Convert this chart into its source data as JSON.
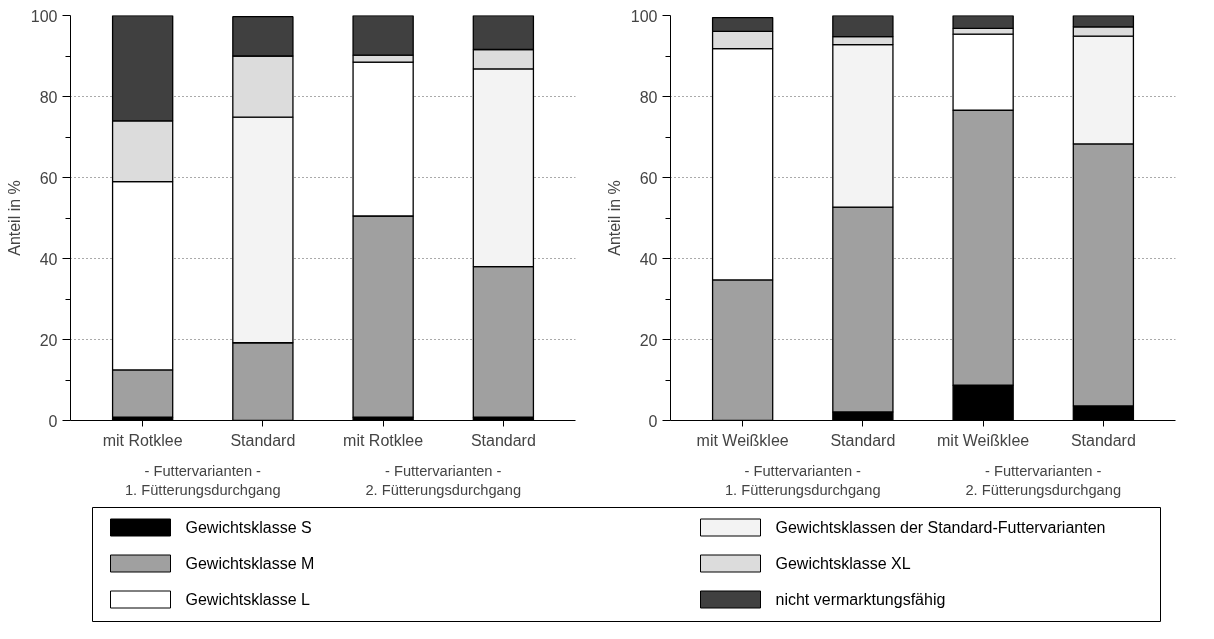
{
  "chart_data": [
    {
      "type": "bar",
      "stacked": true,
      "ylabel": "Anteil in %",
      "categories": [
        "mit Rotklee",
        "Standard",
        "mit Rotklee",
        "Standard"
      ],
      "series": [
        {
          "name": "Gewichtsklasse S",
          "color": "#000000",
          "values": [
            0.8,
            null,
            0.8,
            0.8
          ]
        },
        {
          "name": "Gewichtsklasse M",
          "color": "#a0a0a0",
          "values": [
            11.7,
            19.2,
            49.7,
            37.2
          ]
        },
        {
          "name": "Gewichtsklasse L",
          "color": "#ffffff",
          "values": [
            46.5,
            null,
            38,
            null
          ]
        },
        {
          "name": "Gewichtsklassen der Standard-Futtervarianten",
          "color": "#f3f3f3",
          "values": [
            null,
            55.7,
            null,
            48.8
          ]
        },
        {
          "name": "Gewichtsklasse XL",
          "color": "#dcdcdc",
          "values": [
            15,
            15.1,
            1.7,
            4.8
          ]
        },
        {
          "name": "nicht vermarktungsfähig",
          "color": "#404040",
          "values": [
            26,
            9.7,
            9.8,
            8.4
          ]
        }
      ],
      "ylim": [
        0,
        100
      ],
      "yticks": [
        0,
        {
          "value": 10,
          "label": null
        },
        20,
        {
          "value": 30,
          "label": null
        },
        40,
        {
          "value": 50,
          "label": null
        },
        60,
        {
          "value": 70,
          "label": null
        },
        80,
        {
          "value": 90,
          "label": null
        },
        100
      ],
      "grid": "y",
      "legend": "bottom",
      "annotations": [
        "- Futtervarianten -\n1. Fütterungsdurchgang",
        "- Futtervarianten -\n2. Fütterungsdurchgang"
      ]
    },
    {
      "type": "bar",
      "stacked": true,
      "ylabel": "Anteil in %",
      "categories": [
        "mit Weißklee",
        "Standard",
        "mit Weißklee",
        "Standard"
      ],
      "series": [
        {
          "name": "Gewichtsklasse S",
          "color": "#000000",
          "values": [
            null,
            2.1,
            8.7,
            3.6
          ]
        },
        {
          "name": "Gewichtsklasse M",
          "color": "#a0a0a0",
          "values": [
            34.7,
            50.6,
            67.9,
            64.7
          ]
        },
        {
          "name": "Gewichtsklasse L",
          "color": "#ffffff",
          "values": [
            57.1,
            null,
            18.8,
            null
          ]
        },
        {
          "name": "Gewichtsklassen der Standard-Futtervarianten",
          "color": "#f3f3f3",
          "values": [
            null,
            40.1,
            null,
            26.6
          ]
        },
        {
          "name": "Gewichtsklasse XL",
          "color": "#dcdcdc",
          "values": [
            4.3,
            2.0,
            1.4,
            2.3
          ]
        },
        {
          "name": "nicht vermarktungsfähig",
          "color": "#404040",
          "values": [
            3.4,
            5.2,
            3.2,
            2.8
          ]
        }
      ],
      "ylim": [
        0,
        100
      ],
      "yticks": [
        0,
        {
          "value": 10,
          "label": null
        },
        20,
        {
          "value": 30,
          "label": null
        },
        40,
        {
          "value": 50,
          "label": null
        },
        60,
        {
          "value": 70,
          "label": null
        },
        80,
        {
          "value": 90,
          "label": null
        },
        100
      ],
      "grid": "y",
      "legend": "bottom",
      "annotations": [
        "- Futtervarianten -\n1. Fütterungsdurchgang",
        "- Futtervarianten -\n2. Fütterungsdurchgang"
      ]
    }
  ]
}
